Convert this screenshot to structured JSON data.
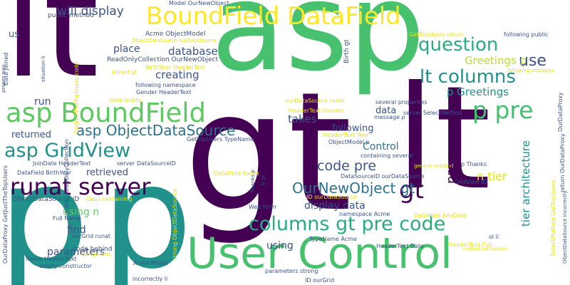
{
  "palette": {
    "dark_purple": "#440154",
    "deep_blue": "#3b528b",
    "blue": "#33638d",
    "teal": "#21918c",
    "sea_green": "#27ad81",
    "green": "#5ec962",
    "light_green": "#7ad151",
    "yellow": "#fde725",
    "gold": "#e5e419"
  },
  "words": [
    {
      "text": "lt",
      "color": "#440154"
    },
    {
      "text": "asp",
      "color": "#48c16e"
    },
    {
      "text": "lt",
      "color": "#440154"
    },
    {
      "text": "gt",
      "color": "#440154"
    },
    {
      "text": "p",
      "color": "#21918c"
    },
    {
      "text": "p",
      "color": "#21918c"
    },
    {
      "text": "User Control",
      "color": "#48c16e"
    },
    {
      "text": "BoundField DataField",
      "color": "#fde725"
    },
    {
      "text": "asp BoundField",
      "color": "#5ec962"
    },
    {
      "text": "p pre",
      "color": "#44bf70"
    },
    {
      "text": "gt",
      "color": "#440154"
    },
    {
      "text": "question",
      "color": "#27ad81"
    },
    {
      "text": "lt columns",
      "color": "#21918c"
    },
    {
      "text": "columns gt pre code",
      "color": "#27ad81"
    },
    {
      "text": "asp GridView",
      "color": "#21918c"
    },
    {
      "text": "runat server",
      "color": "#440154"
    },
    {
      "text": "asp ObjectDataSource",
      "color": "#2c728e"
    },
    {
      "text": "OurNewObject gt",
      "color": "#2c728e"
    },
    {
      "text": "use",
      "color": "#3b528b"
    },
    {
      "text": "will display",
      "color": "#3b528b"
    },
    {
      "text": "database",
      "color": "#3b528b"
    },
    {
      "text": "place",
      "color": "#3b528b"
    },
    {
      "text": "creating",
      "color": "#3b528b"
    },
    {
      "text": "Greetings p",
      "color": "#bddf26"
    },
    {
      "text": "p Greetings",
      "color": "#21918c"
    },
    {
      "text": "code pre",
      "color": "#3b528b"
    },
    {
      "text": "display data",
      "color": "#3b528b"
    },
    {
      "text": "using n",
      "color": "#5ec962"
    },
    {
      "text": "find",
      "color": "#3b528b"
    },
    {
      "text": "parameters",
      "color": "#3b528b"
    },
    {
      "text": "returned",
      "color": "#3b528b"
    },
    {
      "text": "retrieved",
      "color": "#3b528b"
    },
    {
      "text": "takes",
      "color": "#3b528b"
    },
    {
      "text": "following",
      "color": "#3b528b"
    },
    {
      "text": "Control",
      "color": "#2c728e"
    },
    {
      "text": "data",
      "color": "#3b528b"
    },
    {
      "text": "run",
      "color": "#3b528b"
    },
    {
      "text": "us",
      "color": "#3b528b"
    },
    {
      "text": "n tier",
      "color": "#e5e419"
    },
    {
      "text": "using",
      "color": "#3b528b"
    },
    {
      "text": "code behind",
      "color": "#3b528b"
    },
    {
      "text": "public method",
      "color": "#3b528b"
    },
    {
      "text": "Acme ObjectModel",
      "color": "#3b528b"
    },
    {
      "text": "Model OurNewObject",
      "color": "#3b528b"
    },
    {
      "text": "ObjectDataSource ourDataSource",
      "color": "#e5e419"
    },
    {
      "text": "ReadOnlyCollection OurNewObject",
      "color": "#3b528b"
    },
    {
      "text": "BirthYear HeaderText",
      "color": "#e5e419"
    },
    {
      "text": "Joined gt",
      "color": "#e5e419"
    },
    {
      "text": "following namespace",
      "color": "#3b528b"
    },
    {
      "text": "Gender HeaderText",
      "color": "#3b528b"
    },
    {
      "text": "code public",
      "color": "#e5e419"
    },
    {
      "text": "several properties",
      "color": "#3b528b"
    },
    {
      "text": "server SelectMethod",
      "color": "#3b528b"
    },
    {
      "text": "ourDataSource runat",
      "color": "#e5e419"
    },
    {
      "text": "HeaderText Gender",
      "color": "#e5e419"
    },
    {
      "text": "message p",
      "color": "#3b528b"
    },
    {
      "text": "HeaderText Year",
      "color": "#e5e419"
    },
    {
      "text": "ObjectModel p",
      "color": "#3b528b"
    },
    {
      "text": "GetTopUsers TypeName",
      "color": "#3b528b"
    },
    {
      "text": "server DataSourceID",
      "color": "#3b528b"
    },
    {
      "text": "DataField Name",
      "color": "#e5e419"
    },
    {
      "text": "DataField BirthYear",
      "color": "#3b528b"
    },
    {
      "text": "JoinDate HeaderText",
      "color": "#3b528b"
    },
    {
      "text": "ObjectDataSource ID",
      "color": "#3b528b"
    },
    {
      "text": "class containing",
      "color": "#e5e419"
    },
    {
      "text": "DataSourceID ourDataSource",
      "color": "#3b528b"
    },
    {
      "text": "GridView ID",
      "color": "#3b528b"
    },
    {
      "text": "containing several",
      "color": "#3b528b"
    },
    {
      "text": "generic method",
      "color": "#e5e419"
    },
    {
      "text": "p Thanks",
      "color": "#3b528b"
    },
    {
      "text": "ID ourDataSource",
      "color": "#e5e419"
    },
    {
      "text": "Full Name",
      "color": "#3b528b"
    },
    {
      "text": "ourGrid runat",
      "color": "#3b528b"
    },
    {
      "text": "Web form",
      "color": "#3b528b"
    },
    {
      "text": "namespace Acme",
      "color": "#3b528b"
    },
    {
      "text": "DataField JoinDate",
      "color": "#e5e419"
    },
    {
      "text": "non generic",
      "color": "#e5e419"
    },
    {
      "text": "Name HeaderText",
      "color": "#3b528b"
    },
    {
      "text": "empty constructor",
      "color": "#3b528b"
    },
    {
      "text": "Acme Model",
      "color": "#3b528b"
    },
    {
      "text": "TypeName Acme",
      "color": "#3b528b"
    },
    {
      "text": "HeaderText Date",
      "color": "#3b528b"
    },
    {
      "text": "HeaderText Full",
      "color": "#e5e419"
    },
    {
      "text": "method GetTopUsers",
      "color": "#e5e419"
    },
    {
      "text": "ol li",
      "color": "#3b528b"
    },
    {
      "text": "parameters strong",
      "color": "#3b528b"
    },
    {
      "text": "incorrectly li",
      "color": "#3b528b"
    },
    {
      "text": "ID ourGrid",
      "color": "#3b528b"
    },
    {
      "text": "GetTopUsers return",
      "color": "#e5e419"
    },
    {
      "text": "following public",
      "color": "#3b528b"
    },
    {
      "text": "following message",
      "color": "#e5e419"
    },
    {
      "text": "Birth gt",
      "color": "#3b528b"
    },
    {
      "text": "tier architecture",
      "color": "#21918c"
    },
    {
      "text": "pre p",
      "color": "#440154"
    },
    {
      "text": "return OurDataProxy",
      "color": "#3b528b"
    },
    {
      "text": "SelectMethod GetTopUsers",
      "color": "#e5e419"
    },
    {
      "text": "ObjectDataSource incorrectly",
      "color": "#3b528b"
    },
    {
      "text": "public ReadOnlyCollection",
      "color": "#3b528b"
    },
    {
      "text": "GetJustTheTopUsers code",
      "color": "#e5e419"
    },
    {
      "text": "situation li",
      "color": "#3b528b"
    },
    {
      "text": "Date Joined",
      "color": "#3b528b"
    },
    {
      "text": "proper way",
      "color": "#3b528b"
    },
    {
      "text": "OurDataProxy GetJustTheTopUsers",
      "color": "#3b528b"
    },
    {
      "text": "strong ObjectDataSource",
      "color": "#e5e419"
    },
    {
      "text": "Thanks p",
      "color": "#3b528b"
    },
    {
      "text": "li ol",
      "color": "#3b528b"
    },
    {
      "text": "OurDataProxy",
      "color": "#3b528b"
    }
  ]
}
